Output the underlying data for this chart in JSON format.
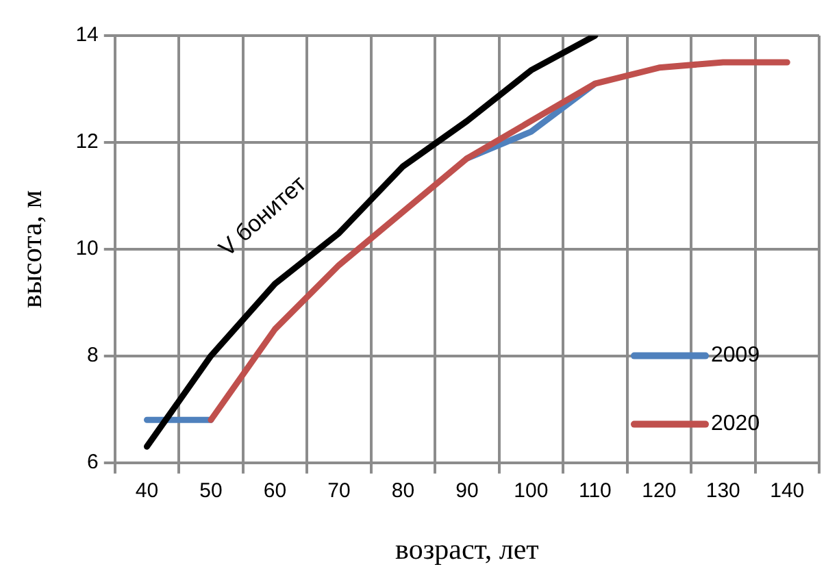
{
  "chart_data": {
    "type": "line",
    "xlabel": "возраст, лет",
    "ylabel": "высота, м",
    "categories": [
      "40",
      "50",
      "60",
      "70",
      "80",
      "90",
      "100",
      "110",
      "120",
      "130",
      "140"
    ],
    "series": [
      {
        "name": "2009",
        "color": "#4f81bd",
        "values": [
          6.8,
          6.8,
          null,
          null,
          null,
          11.7,
          12.2,
          13.1,
          null,
          null,
          null
        ]
      },
      {
        "name": "2020",
        "color": "#c0504d",
        "values": [
          null,
          6.8,
          8.5,
          9.7,
          10.7,
          11.7,
          12.4,
          13.1,
          13.4,
          13.5,
          13.5
        ]
      },
      {
        "color": "#000000",
        "values": [
          6.3,
          8.0,
          9.35,
          10.3,
          11.55,
          12.4,
          13.35,
          14.0,
          null,
          null,
          null
        ]
      }
    ],
    "annotations": [
      "V бонитет"
    ],
    "ylim": [
      6,
      14
    ],
    "yticks": [
      6,
      8,
      10,
      12,
      14
    ],
    "grid": true,
    "legend": "bottom right",
    "marker": "none",
    "line_style": "solid"
  }
}
